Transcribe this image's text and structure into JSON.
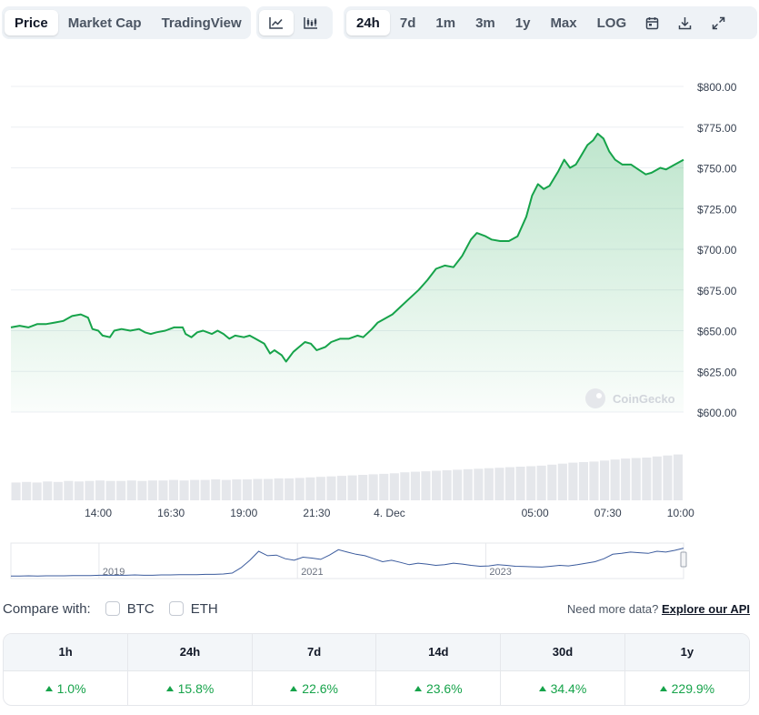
{
  "toolbar": {
    "tabs": [
      {
        "label": "Price",
        "active": true
      },
      {
        "label": "Market Cap",
        "active": false
      },
      {
        "label": "TradingView",
        "active": false
      }
    ],
    "chart_types": [
      {
        "icon": "line-chart-icon",
        "active": true
      },
      {
        "icon": "candlestick-chart-icon",
        "active": false
      }
    ],
    "ranges": [
      {
        "label": "24h",
        "active": true
      },
      {
        "label": "7d",
        "active": false
      },
      {
        "label": "1m",
        "active": false
      },
      {
        "label": "3m",
        "active": false
      },
      {
        "label": "1y",
        "active": false
      },
      {
        "label": "Max",
        "active": false
      },
      {
        "label": "LOG",
        "active": false
      }
    ],
    "actions": [
      "calendar-icon",
      "download-icon",
      "expand-icon"
    ]
  },
  "colors": {
    "line": "#16a34a",
    "fill": "#16a34a",
    "grid": "#eceff3",
    "volume": "#e5e7eb",
    "navigator_line": "#3b5b9d",
    "up": "#16a34a"
  },
  "chart_data": {
    "type": "area",
    "y_ticks": [
      "$800.00",
      "$775.00",
      "$750.00",
      "$725.00",
      "$700.00",
      "$675.00",
      "$650.00",
      "$625.00",
      "$600.00"
    ],
    "y_range": [
      600,
      800
    ],
    "x_ticks": [
      "14:00",
      "16:30",
      "19:00",
      "21:30",
      "4. Dec",
      "05:00",
      "07:30",
      "10:00"
    ],
    "x_tick_hours": [
      3,
      5.5,
      8,
      10.5,
      13,
      18,
      20.5,
      23
    ],
    "x_range_hours": [
      0,
      23.1
    ],
    "watermark": "CoinGecko",
    "series": [
      {
        "points": [
          [
            0.0,
            652
          ],
          [
            0.3,
            653
          ],
          [
            0.6,
            652
          ],
          [
            0.9,
            654
          ],
          [
            1.2,
            654
          ],
          [
            1.5,
            655
          ],
          [
            1.8,
            656
          ],
          [
            2.1,
            659
          ],
          [
            2.4,
            660
          ],
          [
            2.65,
            658
          ],
          [
            2.8,
            651
          ],
          [
            3.0,
            650
          ],
          [
            3.15,
            647
          ],
          [
            3.4,
            646
          ],
          [
            3.55,
            650
          ],
          [
            3.8,
            651
          ],
          [
            4.1,
            650
          ],
          [
            4.4,
            651
          ],
          [
            4.6,
            649
          ],
          [
            4.8,
            648
          ],
          [
            5.0,
            649
          ],
          [
            5.3,
            650
          ],
          [
            5.6,
            652
          ],
          [
            5.9,
            652
          ],
          [
            6.0,
            648
          ],
          [
            6.2,
            646
          ],
          [
            6.4,
            649
          ],
          [
            6.6,
            650
          ],
          [
            6.9,
            648
          ],
          [
            7.1,
            650
          ],
          [
            7.3,
            648
          ],
          [
            7.5,
            645
          ],
          [
            7.7,
            647
          ],
          [
            8.0,
            646
          ],
          [
            8.2,
            647
          ],
          [
            8.4,
            645
          ],
          [
            8.7,
            642
          ],
          [
            8.9,
            636
          ],
          [
            9.05,
            638
          ],
          [
            9.3,
            635
          ],
          [
            9.45,
            631
          ],
          [
            9.7,
            637
          ],
          [
            9.9,
            640
          ],
          [
            10.1,
            643
          ],
          [
            10.3,
            642
          ],
          [
            10.5,
            638
          ],
          [
            10.8,
            640
          ],
          [
            11.0,
            643
          ],
          [
            11.3,
            645
          ],
          [
            11.6,
            645
          ],
          [
            11.9,
            647
          ],
          [
            12.1,
            646
          ],
          [
            12.4,
            651
          ],
          [
            12.6,
            655
          ],
          [
            12.9,
            658
          ],
          [
            13.1,
            660
          ],
          [
            13.4,
            665
          ],
          [
            13.7,
            670
          ],
          [
            14.0,
            675
          ],
          [
            14.3,
            681
          ],
          [
            14.6,
            688
          ],
          [
            14.9,
            690
          ],
          [
            15.2,
            689
          ],
          [
            15.5,
            696
          ],
          [
            15.8,
            706
          ],
          [
            16.0,
            710
          ],
          [
            16.3,
            708
          ],
          [
            16.5,
            706
          ],
          [
            16.8,
            705
          ],
          [
            17.1,
            705
          ],
          [
            17.4,
            708
          ],
          [
            17.7,
            720
          ],
          [
            17.9,
            733
          ],
          [
            18.1,
            740
          ],
          [
            18.3,
            737
          ],
          [
            18.5,
            739
          ],
          [
            18.8,
            748
          ],
          [
            19.0,
            755
          ],
          [
            19.2,
            750
          ],
          [
            19.4,
            752
          ],
          [
            19.6,
            758
          ],
          [
            19.8,
            764
          ],
          [
            20.0,
            767
          ],
          [
            20.15,
            771
          ],
          [
            20.35,
            768
          ],
          [
            20.55,
            760
          ],
          [
            20.75,
            755
          ],
          [
            21.0,
            752
          ],
          [
            21.3,
            752
          ],
          [
            21.55,
            749
          ],
          [
            21.8,
            746
          ],
          [
            22.0,
            747
          ],
          [
            22.3,
            750
          ],
          [
            22.5,
            749
          ],
          [
            22.8,
            752
          ],
          [
            23.1,
            755
          ]
        ]
      }
    ],
    "volume": [
      0.35,
      0.36,
      0.35,
      0.37,
      0.36,
      0.38,
      0.37,
      0.38,
      0.39,
      0.38,
      0.38,
      0.39,
      0.38,
      0.39,
      0.39,
      0.4,
      0.39,
      0.4,
      0.4,
      0.41,
      0.4,
      0.41,
      0.41,
      0.42,
      0.42,
      0.43,
      0.43,
      0.44,
      0.45,
      0.46,
      0.47,
      0.48,
      0.49,
      0.5,
      0.51,
      0.52,
      0.53,
      0.55,
      0.56,
      0.57,
      0.58,
      0.59,
      0.6,
      0.61,
      0.62,
      0.63,
      0.64,
      0.65,
      0.66,
      0.67,
      0.68,
      0.7,
      0.72,
      0.74,
      0.75,
      0.76,
      0.78,
      0.8,
      0.82,
      0.83,
      0.84,
      0.86,
      0.88,
      0.9
    ],
    "navigator": {
      "labels": [
        "2019",
        "2021",
        "2023"
      ],
      "label_positions": [
        0.185,
        0.48,
        0.76
      ],
      "values": [
        0.02,
        0.02,
        0.03,
        0.02,
        0.03,
        0.03,
        0.03,
        0.04,
        0.04,
        0.04,
        0.05,
        0.05,
        0.05,
        0.05,
        0.06,
        0.05,
        0.05,
        0.06,
        0.06,
        0.07,
        0.07,
        0.07,
        0.08,
        0.08,
        0.09,
        0.12,
        0.3,
        0.55,
        0.85,
        0.7,
        0.72,
        0.6,
        0.55,
        0.65,
        0.62,
        0.58,
        0.72,
        0.9,
        0.82,
        0.75,
        0.7,
        0.6,
        0.5,
        0.55,
        0.48,
        0.4,
        0.45,
        0.42,
        0.38,
        0.4,
        0.45,
        0.42,
        0.38,
        0.35,
        0.36,
        0.4,
        0.38,
        0.35,
        0.34,
        0.33,
        0.32,
        0.35,
        0.38,
        0.36,
        0.4,
        0.45,
        0.5,
        0.6,
        0.75,
        0.78,
        0.82,
        0.8,
        0.78,
        0.85,
        0.82,
        0.88,
        0.95
      ]
    }
  },
  "compare": {
    "label": "Compare with:",
    "options": [
      "BTC",
      "ETH"
    ],
    "more_text": "Need more data?",
    "more_link": "Explore our API"
  },
  "performance": {
    "headers": [
      "1h",
      "24h",
      "7d",
      "14d",
      "30d",
      "1y"
    ],
    "values": [
      "1.0%",
      "15.8%",
      "22.6%",
      "23.6%",
      "34.4%",
      "229.9%"
    ]
  }
}
